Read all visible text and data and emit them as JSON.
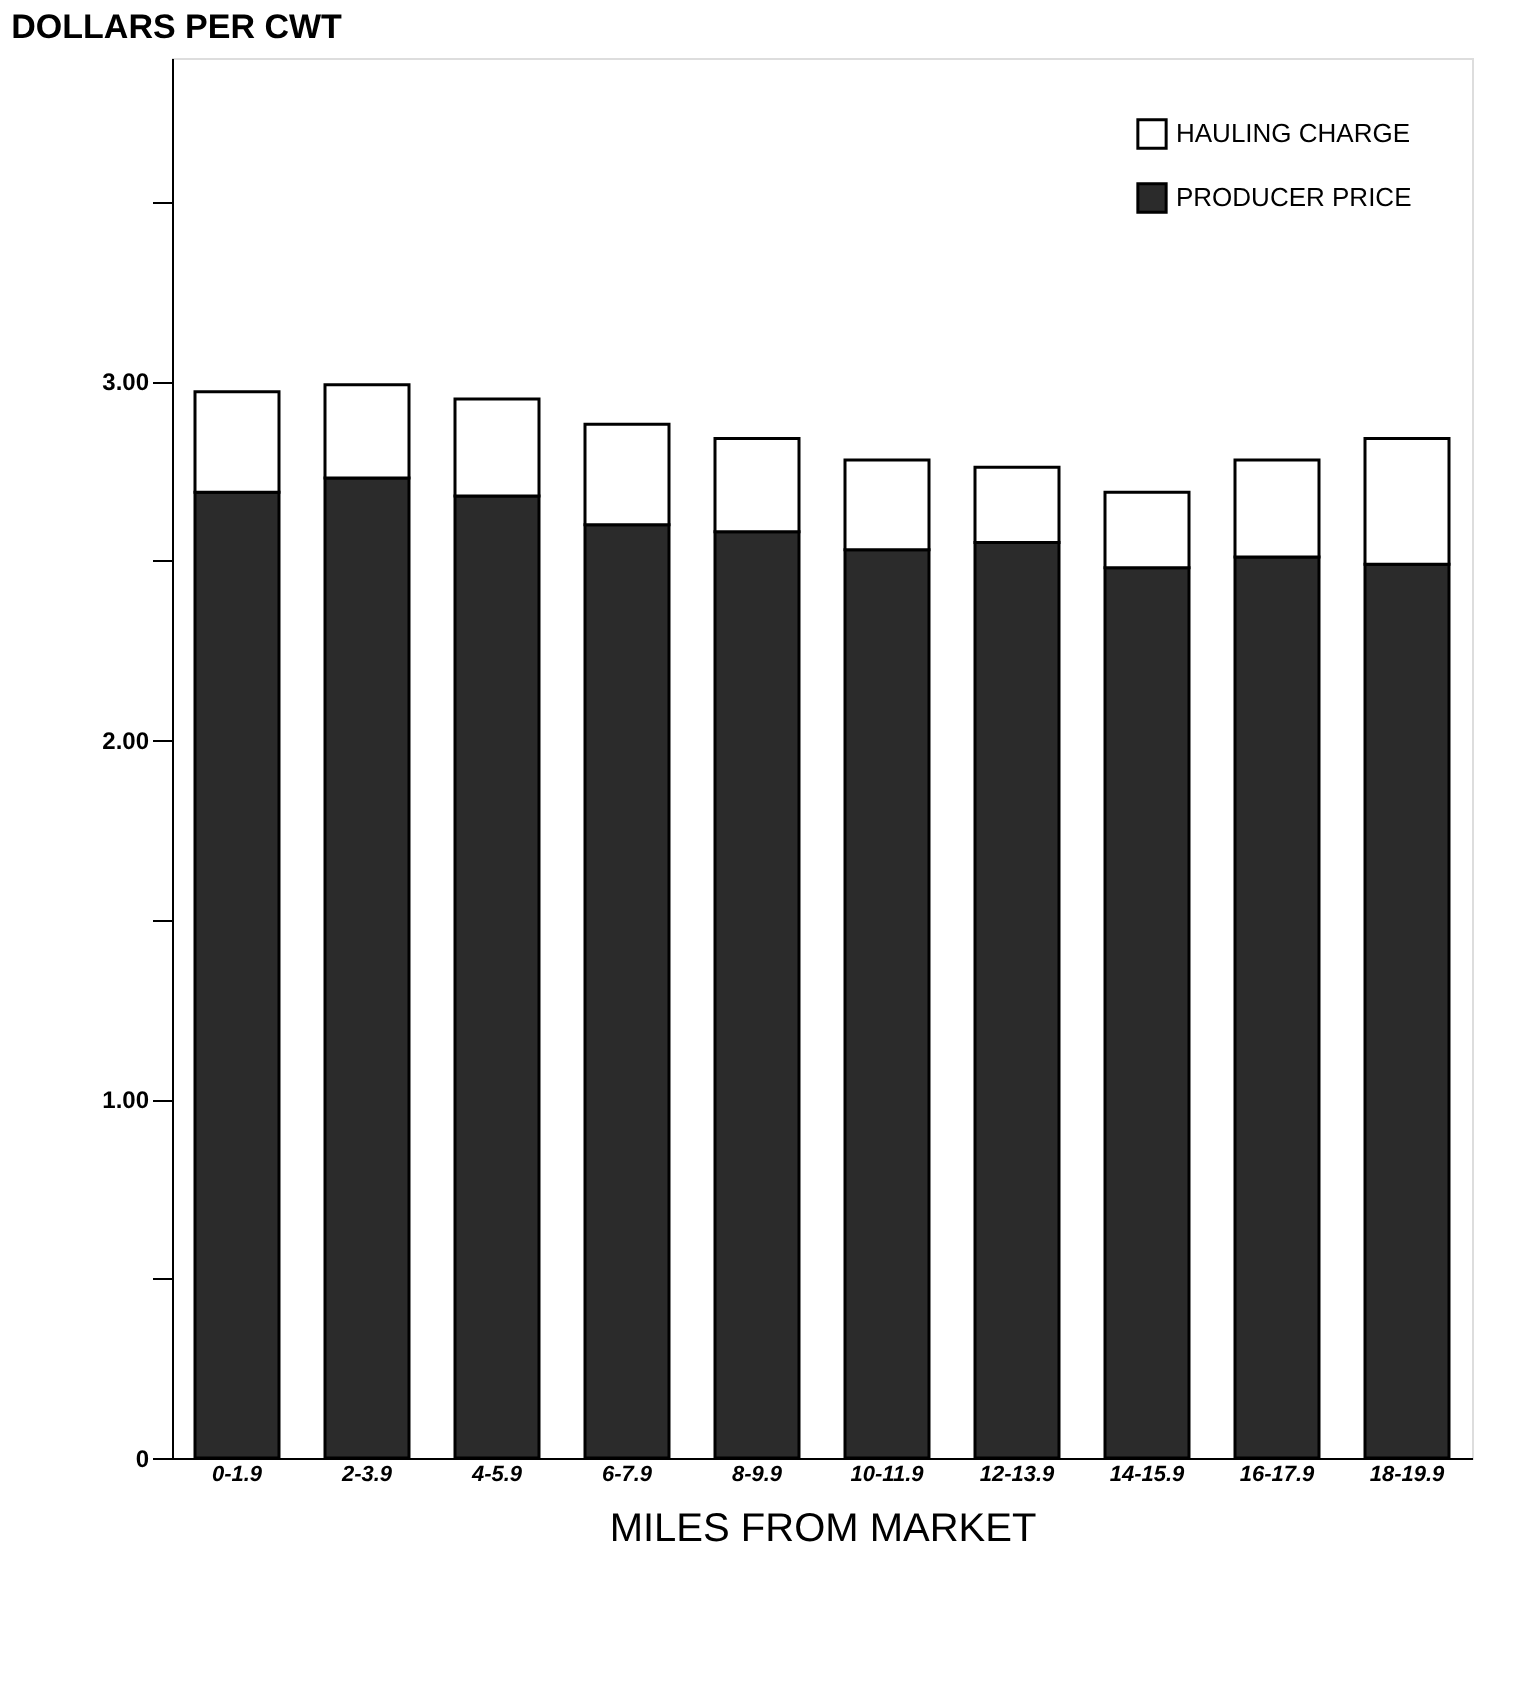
{
  "chart_data": {
    "type": "bar",
    "stacked": true,
    "ylabel": "DOLLARS PER CWT",
    "xlabel": "MILES FROM MARKET",
    "categories": [
      "0-1.9",
      "2-3.9",
      "4-5.9",
      "6-7.9",
      "8-9.9",
      "10-11.9",
      "12-13.9",
      "14-15.9",
      "16-17.9",
      "18-19.9"
    ],
    "series": [
      {
        "name": "PRODUCER PRICE",
        "color": "#2b2b2b",
        "values": [
          2.69,
          2.73,
          2.68,
          2.6,
          2.58,
          2.53,
          2.55,
          2.48,
          2.51,
          2.49
        ]
      },
      {
        "name": "HAULING CHARGE",
        "color": "#ffffff",
        "values": [
          0.28,
          0.26,
          0.27,
          0.28,
          0.26,
          0.25,
          0.21,
          0.21,
          0.27,
          0.35
        ]
      }
    ],
    "ylim": [
      0,
      3.9
    ],
    "yticks": [
      0,
      {
        "value": 0.5,
        "label": null
      },
      {
        "value": 1,
        "label": "1.00"
      },
      {
        "value": 1.5,
        "label": null
      },
      {
        "value": 2,
        "label": "2.00"
      },
      {
        "value": 2.5,
        "label": null
      },
      {
        "value": 3,
        "label": "3.00"
      },
      {
        "value": 3.5,
        "label": null
      }
    ],
    "grid": false,
    "legend": "top right"
  }
}
